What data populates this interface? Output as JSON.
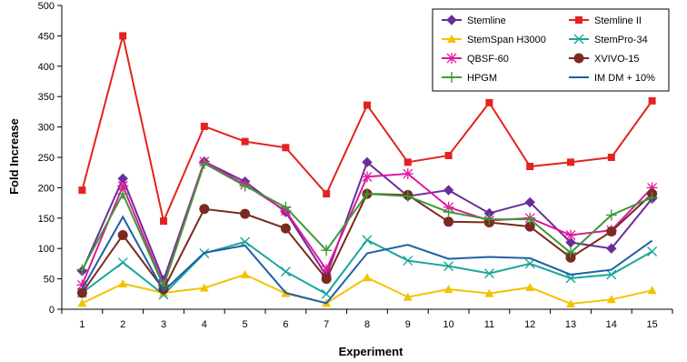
{
  "chart_data": {
    "type": "line",
    "xlabel": "Experiment",
    "ylabel": "Fold Increase",
    "ylim": [
      0,
      500
    ],
    "yticks": [
      0,
      50,
      100,
      150,
      200,
      250,
      300,
      350,
      400,
      450,
      500
    ],
    "x": [
      "1",
      "2",
      "3",
      "4",
      "5",
      "6",
      "7",
      "8",
      "9",
      "10",
      "11",
      "12",
      "13",
      "14",
      "15"
    ],
    "grid": false,
    "legend_position": "top-right",
    "series": [
      {
        "name": "Stemline",
        "color": "#6a2c9a",
        "marker": "diamond",
        "values": [
          63,
          215,
          48,
          243,
          210,
          160,
          55,
          242,
          186,
          196,
          158,
          176,
          110,
          100,
          182
        ]
      },
      {
        "name": "Stemline II",
        "color": "#e3231f",
        "marker": "square",
        "values": [
          196,
          450,
          145,
          301,
          276,
          266,
          190,
          336,
          242,
          253,
          340,
          235,
          242,
          250,
          343
        ]
      },
      {
        "name": "StemSpan H3000",
        "color": "#f3c300",
        "marker": "triangle",
        "values": [
          10,
          42,
          27,
          35,
          57,
          26,
          10,
          52,
          20,
          33,
          26,
          36,
          9,
          16,
          31
        ]
      },
      {
        "name": "StemPro-34",
        "color": "#1aa69a",
        "marker": "x",
        "values": [
          27,
          77,
          24,
          92,
          111,
          62,
          25,
          114,
          80,
          71,
          59,
          75,
          51,
          57,
          95
        ]
      },
      {
        "name": "QBSF-60",
        "color": "#e0189e",
        "marker": "asterisk",
        "values": [
          40,
          203,
          40,
          243,
          205,
          162,
          65,
          218,
          223,
          168,
          146,
          150,
          122,
          130,
          200
        ]
      },
      {
        "name": "XVIVO-15",
        "color": "#7a2a1e",
        "marker": "circle",
        "values": [
          27,
          122,
          33,
          165,
          157,
          133,
          50,
          190,
          188,
          144,
          143,
          136,
          85,
          128,
          190
        ]
      },
      {
        "name": "HPGM",
        "color": "#3a9a36",
        "marker": "plus",
        "values": [
          65,
          190,
          38,
          240,
          203,
          168,
          97,
          190,
          186,
          160,
          148,
          148,
          93,
          155,
          184
        ]
      },
      {
        "name": "IM DM + 10%",
        "color": "#1f5fa8",
        "marker": "none",
        "values": [
          33,
          152,
          30,
          93,
          105,
          27,
          10,
          92,
          106,
          83,
          86,
          84,
          57,
          65,
          113
        ]
      }
    ]
  }
}
